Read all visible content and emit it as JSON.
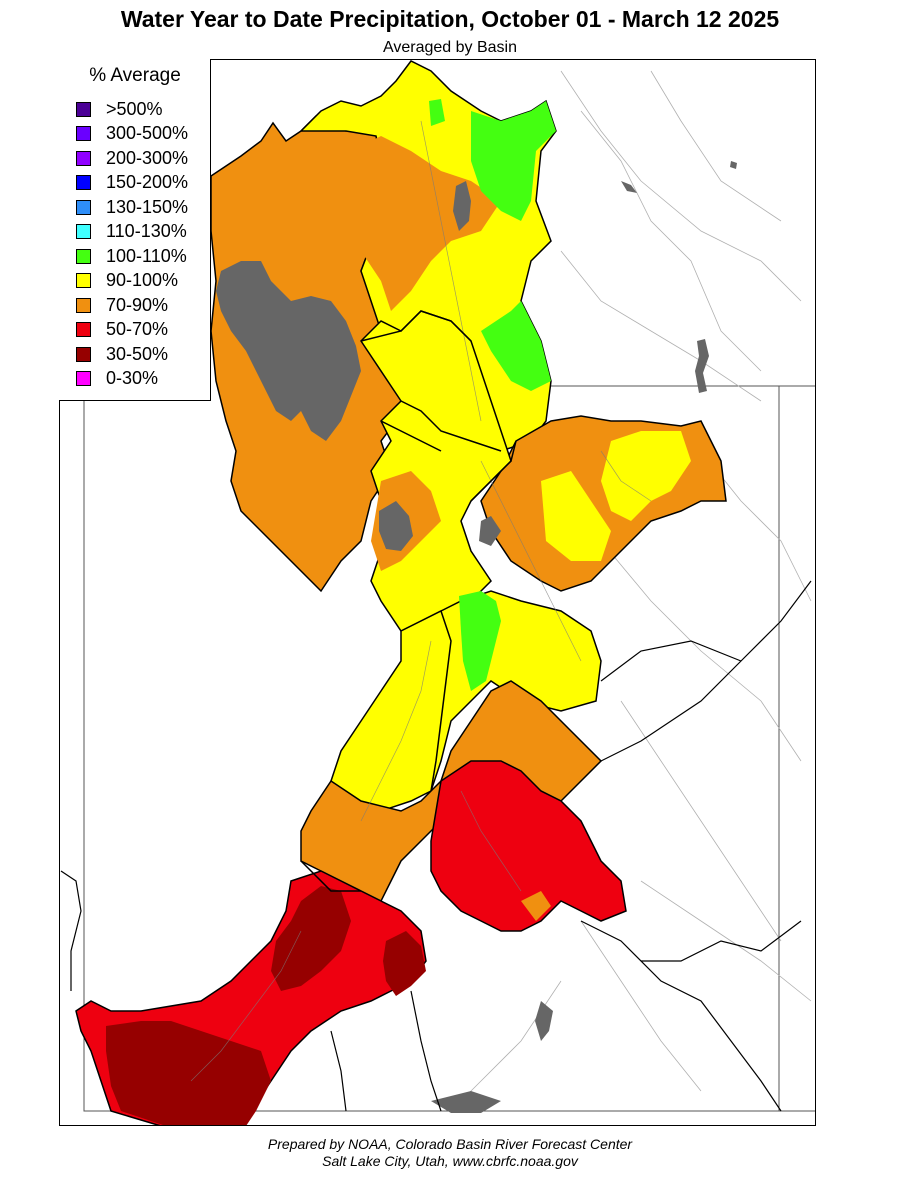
{
  "title": "Water Year to Date Precipitation, October 01  - March 12 2025",
  "subtitle": "Averaged by Basin",
  "legend": {
    "title": "% Average",
    "items": [
      {
        "label": ">500%",
        "color": "#4b0096"
      },
      {
        "label": "300-500%",
        "color": "#6a00ff"
      },
      {
        "label": "200-300%",
        "color": "#9000ff"
      },
      {
        "label": "150-200%",
        "color": "#0000ff"
      },
      {
        "label": "130-150%",
        "color": "#2e8ef8"
      },
      {
        "label": "110-130%",
        "color": "#40ffff"
      },
      {
        "label": "100-110%",
        "color": "#44ff11"
      },
      {
        "label": "90-100%",
        "color": "#ffff00"
      },
      {
        "label": "70-90%",
        "color": "#f09010"
      },
      {
        "label": "50-70%",
        "color": "#ee0010"
      },
      {
        "label": "30-50%",
        "color": "#960000"
      },
      {
        "label": "0-30%",
        "color": "#ff00ff"
      }
    ]
  },
  "colors": {
    "lake": "#666666",
    "state_line": "#555555",
    "basin_line": "#000000",
    "river": "#aaaaaa"
  },
  "credit": {
    "line1": "Prepared by NOAA, Colorado Basin River Forecast Center",
    "line2": "Salt Lake City, Utah, www.cbrfc.noaa.gov"
  }
}
